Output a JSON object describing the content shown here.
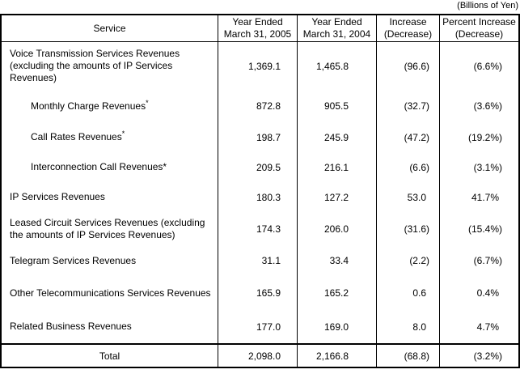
{
  "note": "(Billions of Yen)",
  "table": {
    "headers": [
      {
        "line1": "Service",
        "line2": ""
      },
      {
        "line1": "Year Ended",
        "line2": "March 31, 2005"
      },
      {
        "line1": "Year Ended",
        "line2": "March 31, 2004"
      },
      {
        "line1": "Increase",
        "line2": "(Decrease)"
      },
      {
        "line1": "Percent Increase",
        "line2": "(Decrease)"
      }
    ],
    "rows": [
      {
        "service": "Voice Transmission Services Revenues (excluding the amounts of IP Services Revenues)",
        "indent": false,
        "superscript": false,
        "fy2005": "1,369.1",
        "fy2004": "1,465.8",
        "increase": "(96.6)",
        "percent": "(6.6%)"
      },
      {
        "service": "Monthly Charge Revenues",
        "indent": true,
        "superscript": true,
        "fy2005": "872.8",
        "fy2004": "905.5",
        "increase": "(32.7)",
        "percent": "(3.6%)"
      },
      {
        "service": "Call Rates Revenues",
        "indent": true,
        "superscript": true,
        "fy2005": "198.7",
        "fy2004": "245.9",
        "increase": "(47.2)",
        "percent": "(19.2%)"
      },
      {
        "service": "Interconnection Call Revenues*",
        "indent": true,
        "superscript": false,
        "fy2005": "209.5",
        "fy2004": "216.1",
        "increase": "(6.6)",
        "percent": "(3.1%)"
      },
      {
        "service": "IP Services Revenues",
        "indent": false,
        "superscript": false,
        "fy2005": "180.3",
        "fy2004": "127.2",
        "increase": "53.0",
        "percent": "41.7%"
      },
      {
        "service": "Leased Circuit Services Revenues (excluding the amounts of IP Services Revenues)",
        "indent": false,
        "superscript": false,
        "fy2005": "174.3",
        "fy2004": "206.0",
        "increase": "(31.6)",
        "percent": "(15.4%)"
      },
      {
        "service": "Telegram Services Revenues",
        "indent": false,
        "superscript": false,
        "fy2005": "31.1",
        "fy2004": "33.4",
        "increase": "(2.2)",
        "percent": "(6.7%)"
      },
      {
        "service": "Other Telecommunications Services Revenues",
        "indent": false,
        "superscript": false,
        "fy2005": "165.9",
        "fy2004": "165.2",
        "increase": "0.6",
        "percent": "0.4%"
      },
      {
        "service": "Related Business Revenues",
        "indent": false,
        "superscript": false,
        "fy2005": "177.0",
        "fy2004": "169.0",
        "increase": "8.0",
        "percent": "4.7%"
      }
    ],
    "total": {
      "service": "Total",
      "fy2005": "2,098.0",
      "fy2004": "2,166.8",
      "increase": "(68.8)",
      "percent": "(3.2%)"
    }
  }
}
